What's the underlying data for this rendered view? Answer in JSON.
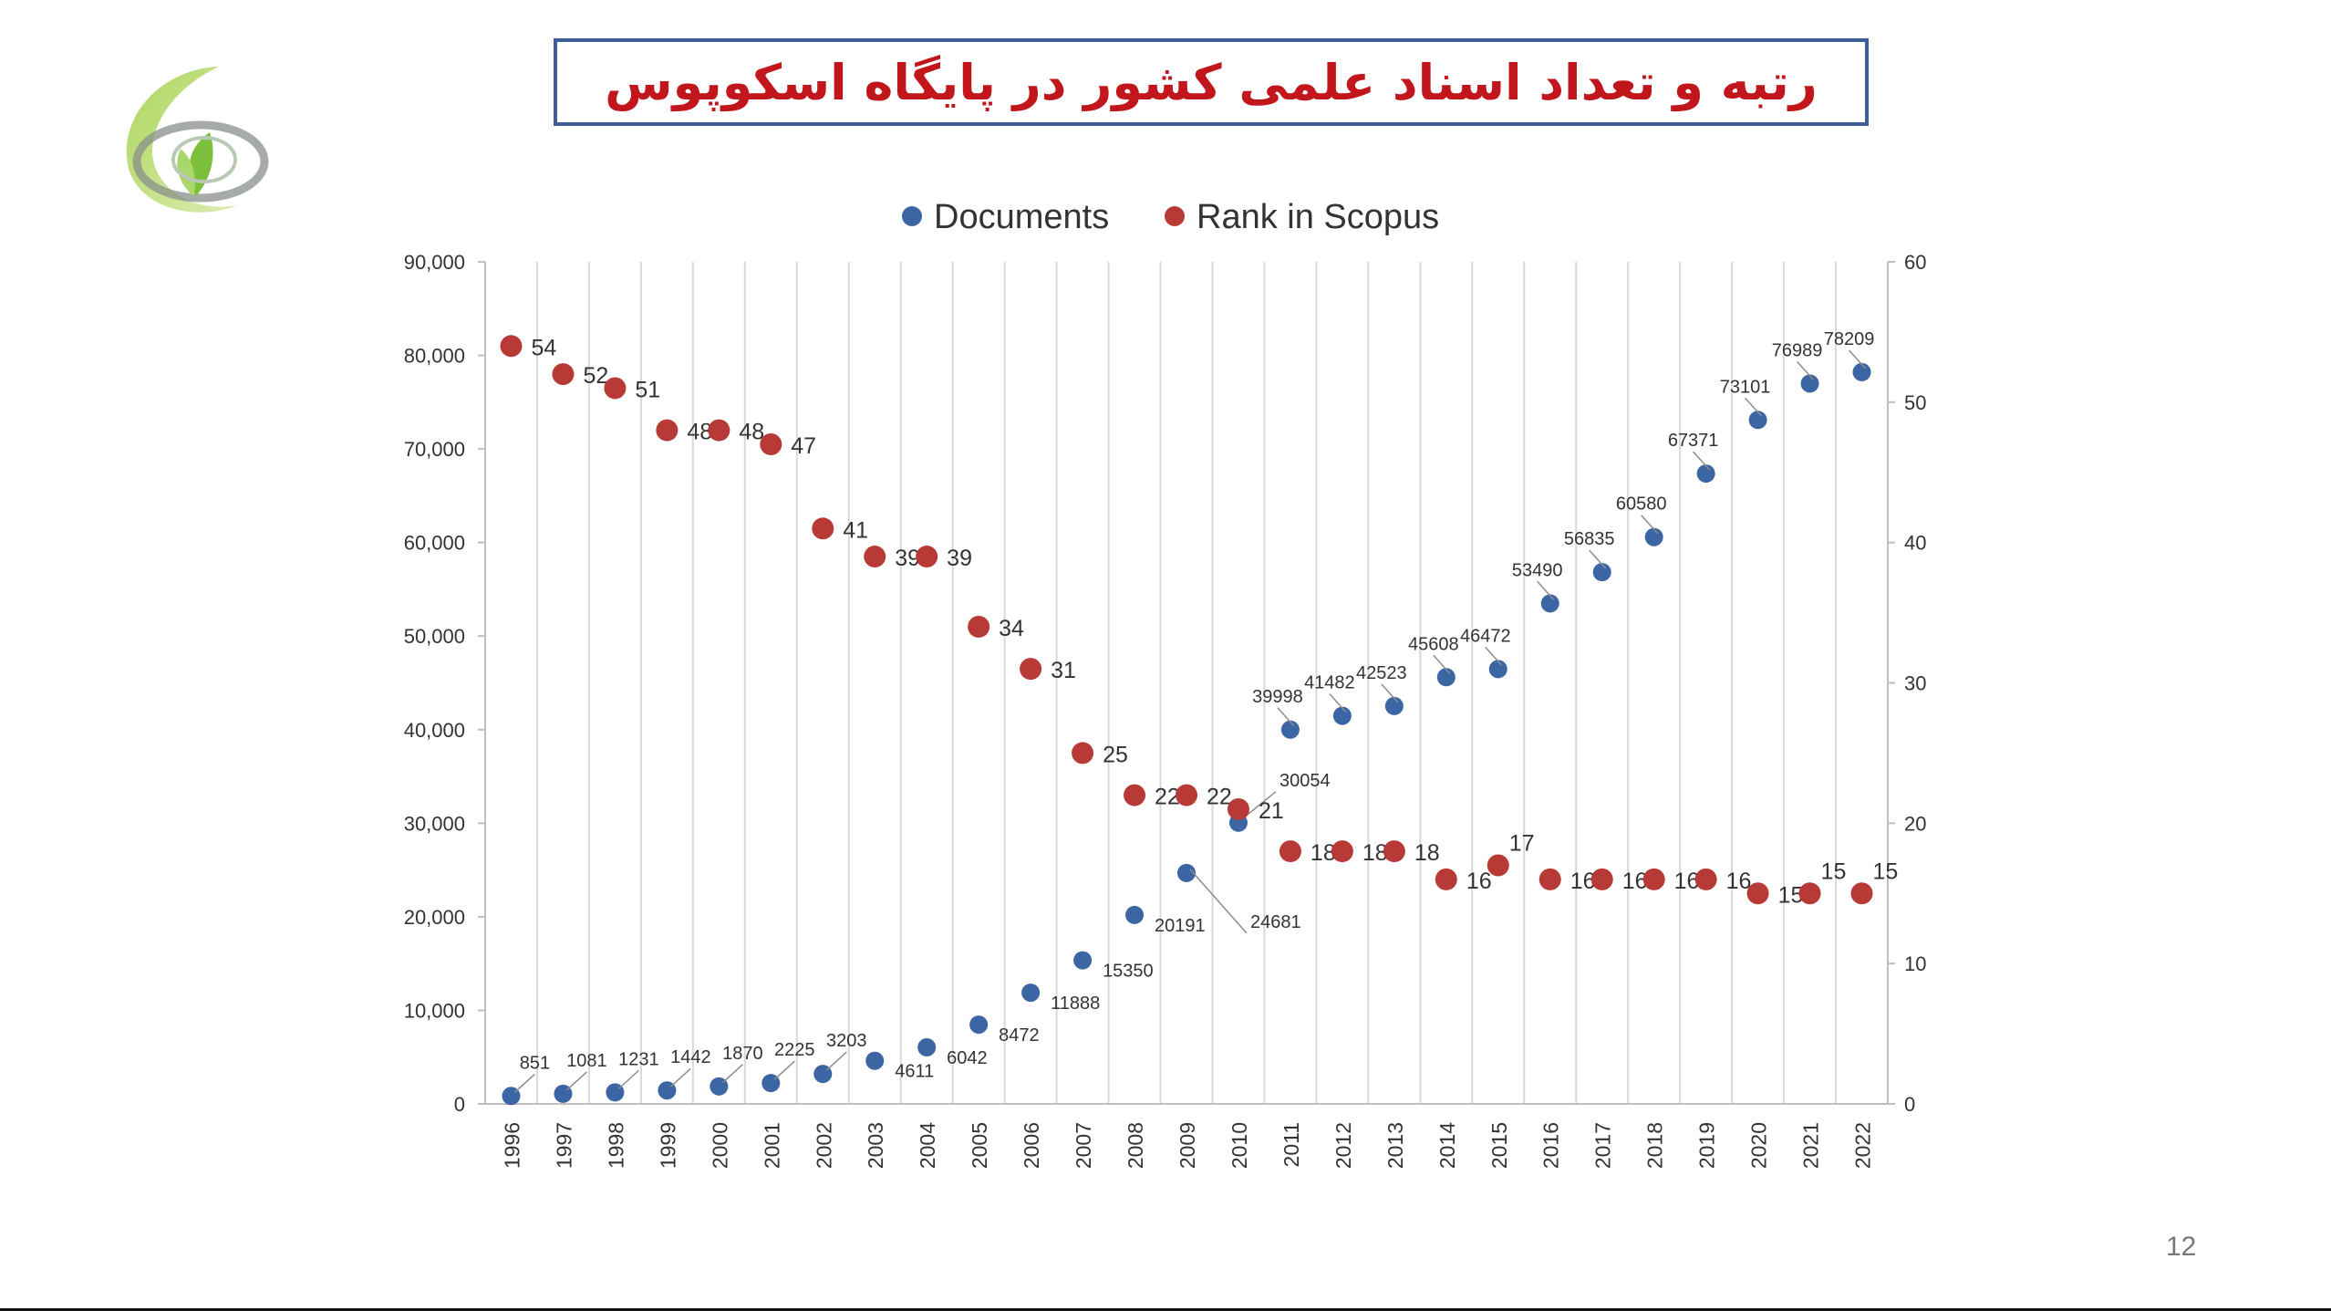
{
  "slide": {
    "title": "رتبه و تعداد اسناد علمی کشور در پایگاه اسکوپوس",
    "page_number": "12"
  },
  "colors": {
    "documents": "#3c65a4",
    "rank": "#b83a36",
    "title_text": "#c0161c",
    "title_border": "#3d5f97",
    "grid": "#d9d9d9"
  },
  "chart_data": {
    "type": "scatter",
    "legend_position": "top",
    "grid": true,
    "x": [
      "1996",
      "1997",
      "1998",
      "1999",
      "2000",
      "2001",
      "2002",
      "2003",
      "2004",
      "2005",
      "2006",
      "2007",
      "2008",
      "2009",
      "2010",
      "2011",
      "2012",
      "2013",
      "2014",
      "2015",
      "2016",
      "2017",
      "2018",
      "2019",
      "2020",
      "2021",
      "2022"
    ],
    "y_left": {
      "ylim": [
        0,
        90000
      ],
      "ticks": [
        "0",
        "10,000",
        "20,000",
        "30,000",
        "40,000",
        "50,000",
        "60,000",
        "70,000",
        "80,000",
        "90,000"
      ]
    },
    "y_right": {
      "ylim": [
        0,
        60
      ],
      "ticks": [
        "0",
        "10",
        "20",
        "30",
        "40",
        "50",
        "60"
      ]
    },
    "series": [
      {
        "name": "Documents",
        "axis": "left",
        "values": [
          851,
          1081,
          1231,
          1442,
          1870,
          2225,
          3203,
          4611,
          6042,
          8472,
          11888,
          15350,
          20191,
          24681,
          30054,
          39998,
          41482,
          42523,
          45608,
          46472,
          53490,
          56835,
          60580,
          67371,
          73101,
          76989,
          78209
        ]
      },
      {
        "name": "Rank in Scopus",
        "axis": "right",
        "values": [
          54,
          52,
          51,
          48,
          48,
          47,
          41,
          39,
          39,
          34,
          31,
          25,
          22,
          22,
          21,
          18,
          18,
          18,
          16,
          17,
          16,
          16,
          16,
          16,
          15,
          15,
          15
        ]
      }
    ]
  }
}
